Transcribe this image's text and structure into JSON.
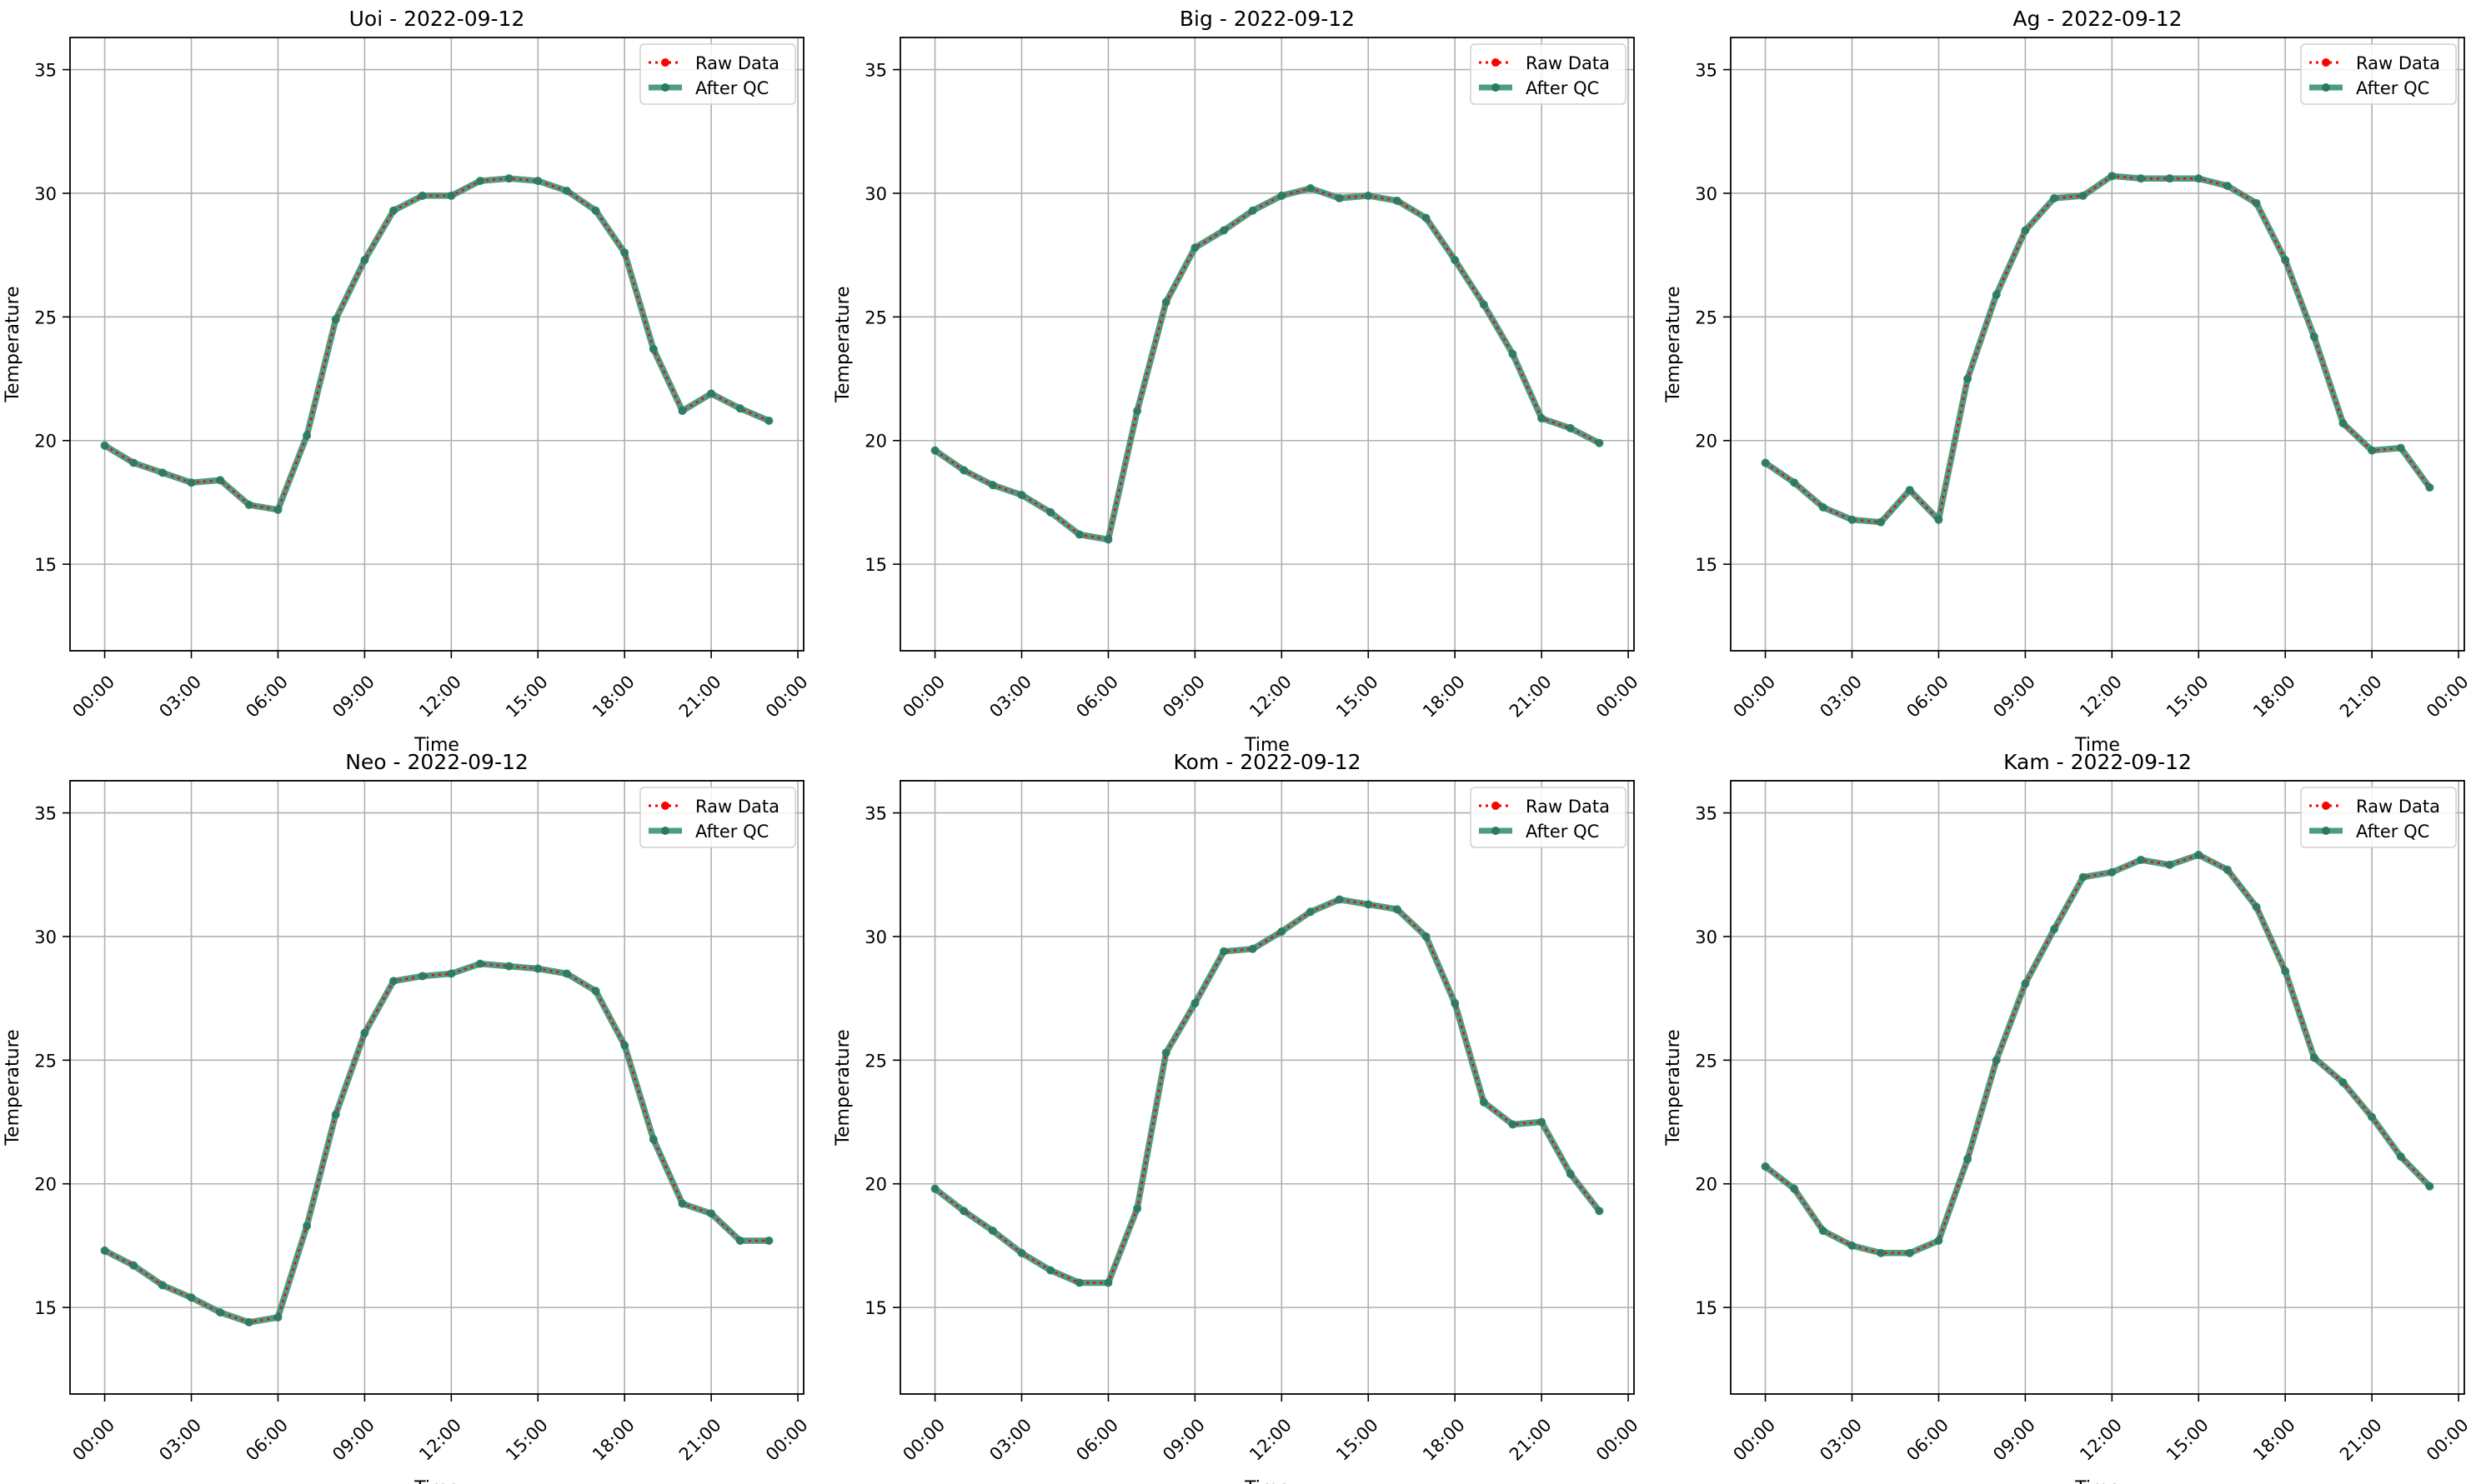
{
  "legend": {
    "raw_label": "Raw Data",
    "qc_label": "After QC"
  },
  "colors": {
    "raw": "#ff0000",
    "qc": "#2e8b6e",
    "grid": "#b0b0b0",
    "axis": "#000000"
  },
  "chart_data": [
    {
      "type": "line",
      "title": "Uoi - 2022-09-12",
      "xlabel": "Time",
      "ylabel": "Temperature",
      "x_ticks": [
        "00:00",
        "03:00",
        "06:00",
        "09:00",
        "12:00",
        "15:00",
        "18:00",
        "21:00",
        "00:00"
      ],
      "y_ticks": [
        15,
        20,
        25,
        30,
        35
      ],
      "xlim": [
        -1.2,
        24.2
      ],
      "ylim": [
        11.5,
        36.3
      ],
      "grid": true,
      "legend_position": "top-right",
      "series": [
        {
          "name": "Raw Data",
          "values": [
            19.8,
            19.1,
            18.7,
            18.3,
            18.4,
            17.4,
            17.2,
            20.2,
            24.9,
            27.3,
            29.3,
            29.9,
            29.9,
            30.5,
            30.6,
            30.5,
            30.1,
            29.3,
            27.6,
            23.7,
            21.2,
            21.9,
            21.3,
            20.8
          ]
        },
        {
          "name": "After QC",
          "values": [
            19.8,
            19.1,
            18.7,
            18.3,
            18.4,
            17.4,
            17.2,
            20.2,
            24.9,
            27.3,
            29.3,
            29.9,
            29.9,
            30.5,
            30.6,
            30.5,
            30.1,
            29.3,
            27.6,
            23.7,
            21.2,
            21.9,
            21.3,
            20.8
          ]
        }
      ]
    },
    {
      "type": "line",
      "title": "Big - 2022-09-12",
      "xlabel": "Time",
      "ylabel": "Temperature",
      "x_ticks": [
        "00:00",
        "03:00",
        "06:00",
        "09:00",
        "12:00",
        "15:00",
        "18:00",
        "21:00",
        "00:00"
      ],
      "y_ticks": [
        15,
        20,
        25,
        30,
        35
      ],
      "xlim": [
        -1.2,
        24.2
      ],
      "ylim": [
        11.5,
        36.3
      ],
      "grid": true,
      "legend_position": "top-right",
      "series": [
        {
          "name": "Raw Data",
          "values": [
            19.6,
            18.8,
            18.2,
            17.8,
            17.1,
            16.2,
            16.0,
            21.2,
            25.6,
            27.8,
            28.5,
            29.3,
            29.9,
            30.2,
            29.8,
            29.9,
            29.7,
            29.0,
            27.3,
            25.5,
            23.5,
            20.9,
            20.5,
            19.9
          ]
        },
        {
          "name": "After QC",
          "values": [
            19.6,
            18.8,
            18.2,
            17.8,
            17.1,
            16.2,
            16.0,
            21.2,
            25.6,
            27.8,
            28.5,
            29.3,
            29.9,
            30.2,
            29.8,
            29.9,
            29.7,
            29.0,
            27.3,
            25.5,
            23.5,
            20.9,
            20.5,
            19.9
          ]
        }
      ]
    },
    {
      "type": "line",
      "title": "Ag - 2022-09-12",
      "xlabel": "Time",
      "ylabel": "Temperature",
      "x_ticks": [
        "00:00",
        "03:00",
        "06:00",
        "09:00",
        "12:00",
        "15:00",
        "18:00",
        "21:00",
        "00:00"
      ],
      "y_ticks": [
        15,
        20,
        25,
        30,
        35
      ],
      "xlim": [
        -1.2,
        24.2
      ],
      "ylim": [
        11.5,
        36.3
      ],
      "grid": true,
      "legend_position": "top-right",
      "series": [
        {
          "name": "Raw Data",
          "values": [
            19.1,
            18.3,
            17.3,
            16.8,
            16.7,
            18.0,
            16.8,
            22.5,
            25.9,
            28.5,
            29.8,
            29.9,
            30.7,
            30.6,
            30.6,
            30.6,
            30.3,
            29.6,
            27.3,
            24.2,
            20.7,
            19.6,
            19.7,
            18.1
          ]
        },
        {
          "name": "After QC",
          "values": [
            19.1,
            18.3,
            17.3,
            16.8,
            16.7,
            18.0,
            16.8,
            22.5,
            25.9,
            28.5,
            29.8,
            29.9,
            30.7,
            30.6,
            30.6,
            30.6,
            30.3,
            29.6,
            27.3,
            24.2,
            20.7,
            19.6,
            19.7,
            18.1
          ]
        }
      ]
    },
    {
      "type": "line",
      "title": "Neo - 2022-09-12",
      "xlabel": "Time",
      "ylabel": "Temperature",
      "x_ticks": [
        "00:00",
        "03:00",
        "06:00",
        "09:00",
        "12:00",
        "15:00",
        "18:00",
        "21:00",
        "00:00"
      ],
      "y_ticks": [
        15,
        20,
        25,
        30,
        35
      ],
      "xlim": [
        -1.2,
        24.2
      ],
      "ylim": [
        11.5,
        36.3
      ],
      "grid": true,
      "legend_position": "top-right",
      "series": [
        {
          "name": "Raw Data",
          "values": [
            17.3,
            16.7,
            15.9,
            15.4,
            14.8,
            14.4,
            14.6,
            18.3,
            22.8,
            26.1,
            28.2,
            28.4,
            28.5,
            28.9,
            28.8,
            28.7,
            28.5,
            27.8,
            25.6,
            21.8,
            19.2,
            18.8,
            17.7,
            17.7
          ]
        },
        {
          "name": "After QC",
          "values": [
            17.3,
            16.7,
            15.9,
            15.4,
            14.8,
            14.4,
            14.6,
            18.3,
            22.8,
            26.1,
            28.2,
            28.4,
            28.5,
            28.9,
            28.8,
            28.7,
            28.5,
            27.8,
            25.6,
            21.8,
            19.2,
            18.8,
            17.7,
            17.7
          ]
        }
      ]
    },
    {
      "type": "line",
      "title": "Kom - 2022-09-12",
      "xlabel": "Time",
      "ylabel": "Temperature",
      "x_ticks": [
        "00:00",
        "03:00",
        "06:00",
        "09:00",
        "12:00",
        "15:00",
        "18:00",
        "21:00",
        "00:00"
      ],
      "y_ticks": [
        15,
        20,
        25,
        30,
        35
      ],
      "xlim": [
        -1.2,
        24.2
      ],
      "ylim": [
        11.5,
        36.3
      ],
      "grid": true,
      "legend_position": "top-right",
      "series": [
        {
          "name": "Raw Data",
          "values": [
            19.8,
            18.9,
            18.1,
            17.2,
            16.5,
            16.0,
            16.0,
            19.0,
            25.3,
            27.3,
            29.4,
            29.5,
            30.2,
            31.0,
            31.5,
            31.3,
            31.1,
            30.0,
            27.3,
            23.3,
            22.4,
            22.5,
            20.4,
            18.9
          ]
        },
        {
          "name": "After QC",
          "values": [
            19.8,
            18.9,
            18.1,
            17.2,
            16.5,
            16.0,
            16.0,
            19.0,
            25.3,
            27.3,
            29.4,
            29.5,
            30.2,
            31.0,
            31.5,
            31.3,
            31.1,
            30.0,
            27.3,
            23.3,
            22.4,
            22.5,
            20.4,
            18.9
          ]
        }
      ]
    },
    {
      "type": "line",
      "title": "Kam - 2022-09-12",
      "xlabel": "Time",
      "ylabel": "Temperature",
      "x_ticks": [
        "00:00",
        "03:00",
        "06:00",
        "09:00",
        "12:00",
        "15:00",
        "18:00",
        "21:00",
        "00:00"
      ],
      "y_ticks": [
        15,
        20,
        25,
        30,
        35
      ],
      "xlim": [
        -1.2,
        24.2
      ],
      "ylim": [
        11.5,
        36.3
      ],
      "grid": true,
      "legend_position": "top-right",
      "series": [
        {
          "name": "Raw Data",
          "values": [
            20.7,
            19.8,
            18.1,
            17.5,
            17.2,
            17.2,
            17.7,
            21.0,
            25.0,
            28.1,
            30.3,
            32.4,
            32.6,
            33.1,
            32.9,
            33.3,
            32.7,
            31.2,
            28.6,
            25.1,
            24.1,
            22.7,
            21.1,
            19.9
          ]
        },
        {
          "name": "After QC",
          "values": [
            20.7,
            19.8,
            18.1,
            17.5,
            17.2,
            17.2,
            17.7,
            21.0,
            25.0,
            28.1,
            30.3,
            32.4,
            32.6,
            33.1,
            32.9,
            33.3,
            32.7,
            31.2,
            28.6,
            25.1,
            24.1,
            22.7,
            21.1,
            19.9
          ]
        }
      ]
    }
  ]
}
